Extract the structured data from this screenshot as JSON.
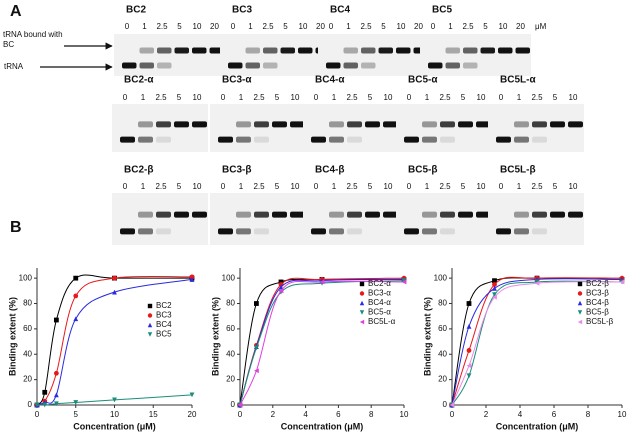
{
  "figure": {
    "panel_a": "A",
    "panel_b": "B",
    "arrow_labels": [
      "tRNA bound with BC",
      "tRNA"
    ]
  },
  "gel_unit": "μM",
  "gels": [
    [
      {
        "label": "BC2",
        "lanes": [
          0,
          1,
          2.5,
          5,
          10,
          20
        ]
      },
      {
        "label": "BC3",
        "lanes": [
          0,
          1,
          2.5,
          5,
          10,
          20
        ]
      },
      {
        "label": "BC4",
        "lanes": [
          0,
          1,
          2.5,
          5,
          10,
          20
        ]
      },
      {
        "label": "BC5",
        "lanes": [
          0,
          1,
          2.5,
          5,
          10,
          20
        ]
      }
    ],
    [
      {
        "label": "BC2-α",
        "lanes": [
          0,
          1,
          2.5,
          5,
          10
        ]
      },
      {
        "label": "BC3-α",
        "lanes": [
          0,
          1,
          2.5,
          5,
          10
        ]
      },
      {
        "label": "BC4-α",
        "lanes": [
          0,
          1,
          2.5,
          5,
          10
        ]
      },
      {
        "label": "BC5-α",
        "lanes": [
          0,
          1,
          2.5,
          5,
          10
        ]
      },
      {
        "label": "BC5L-α",
        "lanes": [
          0,
          1,
          2.5,
          5,
          10
        ]
      }
    ],
    [
      {
        "label": "BC2-β",
        "lanes": [
          0,
          1,
          2.5,
          5,
          10
        ]
      },
      {
        "label": "BC3-β",
        "lanes": [
          0,
          1,
          2.5,
          5,
          10
        ]
      },
      {
        "label": "BC4-β",
        "lanes": [
          0,
          1,
          2.5,
          5,
          10
        ]
      },
      {
        "label": "BC5-β",
        "lanes": [
          0,
          1,
          2.5,
          5,
          10
        ]
      },
      {
        "label": "BC5L-β",
        "lanes": [
          0,
          1,
          2.5,
          5,
          10
        ]
      }
    ]
  ],
  "chart_data": [
    {
      "type": "line",
      "xlabel": "Concentration (μM)",
      "ylabel": "Binding extent (%)",
      "x": [
        0,
        1,
        2.5,
        5,
        10,
        20
      ],
      "xlim": [
        0,
        20
      ],
      "ylim": [
        0,
        108
      ],
      "xticks": [
        0,
        5,
        10,
        15,
        20
      ],
      "yticks": [
        0,
        20,
        40,
        60,
        80,
        100
      ],
      "legend": "upper right",
      "series": [
        {
          "name": "BC2",
          "color": "#000000",
          "marker": "square",
          "values": [
            0,
            10,
            67,
            100,
            100,
            100
          ]
        },
        {
          "name": "BC3",
          "color": "#e8191b",
          "marker": "circle",
          "values": [
            0,
            3,
            25,
            86,
            100,
            101
          ]
        },
        {
          "name": "BC4",
          "color": "#2a2ae0",
          "marker": "triangle-up",
          "values": [
            0,
            2,
            8,
            68,
            89,
            99
          ]
        },
        {
          "name": "BC5",
          "color": "#1a8c7a",
          "marker": "triangle-down",
          "values": [
            0,
            0,
            1,
            2,
            4,
            8
          ]
        }
      ]
    },
    {
      "type": "line",
      "xlabel": "Concentration (μM)",
      "ylabel": "Binding extent (%)",
      "x": [
        0,
        1,
        2.5,
        5,
        10
      ],
      "xlim": [
        0,
        10
      ],
      "ylim": [
        0,
        108
      ],
      "xticks": [
        0,
        2,
        4,
        6,
        8,
        10
      ],
      "yticks": [
        0,
        20,
        40,
        60,
        80,
        100
      ],
      "legend": "upper right",
      "series": [
        {
          "name": "BC2-α",
          "color": "#000000",
          "marker": "square",
          "values": [
            0,
            80,
            97,
            99,
            99
          ]
        },
        {
          "name": "BC3-α",
          "color": "#e8191b",
          "marker": "circle",
          "values": [
            0,
            47,
            95,
            99,
            100
          ]
        },
        {
          "name": "BC4-α",
          "color": "#2a2ae0",
          "marker": "triangle-up",
          "values": [
            0,
            46,
            93,
            98,
            99
          ]
        },
        {
          "name": "BC5-α",
          "color": "#1a8c7a",
          "marker": "triangle-down",
          "values": [
            0,
            45,
            89,
            96,
            98
          ]
        },
        {
          "name": "BC5L-α",
          "color": "#e040e0",
          "marker": "triangle-left",
          "values": [
            0,
            27,
            90,
            97,
            97
          ]
        }
      ]
    },
    {
      "type": "line",
      "xlabel": "Concentration (μM)",
      "ylabel": "Binding extent (%)",
      "x": [
        0,
        1,
        2.5,
        5,
        10
      ],
      "xlim": [
        0,
        10
      ],
      "ylim": [
        0,
        108
      ],
      "xticks": [
        0,
        2,
        4,
        6,
        8,
        10
      ],
      "yticks": [
        0,
        20,
        40,
        60,
        80,
        100
      ],
      "legend": "upper right",
      "series": [
        {
          "name": "BC2-β",
          "color": "#000000",
          "marker": "square",
          "values": [
            0,
            80,
            98,
            100,
            99
          ]
        },
        {
          "name": "BC3-β",
          "color": "#e8191b",
          "marker": "circle",
          "values": [
            0,
            43,
            95,
            100,
            100
          ]
        },
        {
          "name": "BC4-β",
          "color": "#2a2ae0",
          "marker": "triangle-up",
          "values": [
            0,
            62,
            92,
            99,
            99
          ]
        },
        {
          "name": "BC5-β",
          "color": "#1a8c7a",
          "marker": "triangle-down",
          "values": [
            0,
            23,
            87,
            97,
            97
          ]
        },
        {
          "name": "BC5L-β",
          "color": "#e88ae8",
          "marker": "triangle-left",
          "values": [
            0,
            31,
            85,
            96,
            97
          ]
        }
      ]
    }
  ]
}
